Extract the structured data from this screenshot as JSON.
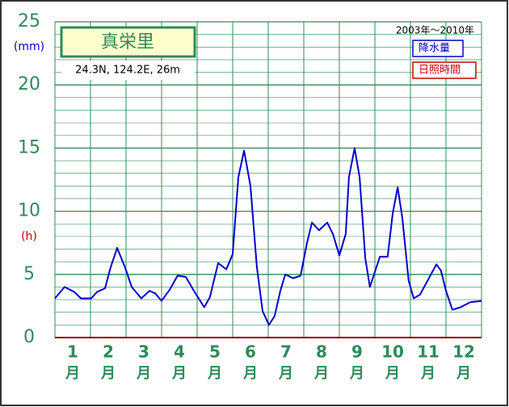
{
  "chart_data": {
    "type": "line",
    "title": "真栄里",
    "location": "24.3N,  124.2E,  26m",
    "period": "2003年～2010年",
    "y_unit": "(mm)",
    "y2_unit": "(h)",
    "month_unit": "月",
    "categories": [
      "1",
      "2",
      "3",
      "4",
      "5",
      "6",
      "7",
      "8",
      "9",
      "10",
      "11",
      "12"
    ],
    "legend": [
      {
        "name": "降水量",
        "color": "#0000cc"
      },
      {
        "name": "日照時間",
        "color": "#cc0000"
      }
    ],
    "xlim": [
      0,
      12
    ],
    "ylim": [
      0,
      25
    ],
    "yticks": [
      0,
      5,
      10,
      15,
      20,
      25
    ],
    "grid": true,
    "series": [
      {
        "color": "#0000cc",
        "x": [
          0,
          0.27,
          0.55,
          0.73,
          1.02,
          1.18,
          1.41,
          1.57,
          1.75,
          1.98,
          2.16,
          2.43,
          2.66,
          2.82,
          3.0,
          3.23,
          3.45,
          3.68,
          3.91,
          4.2,
          4.36,
          4.59,
          4.82,
          5.0,
          5.16,
          5.32,
          5.5,
          5.68,
          5.84,
          6.02,
          6.18,
          6.34,
          6.48,
          6.7,
          6.91,
          7.09,
          7.23,
          7.43,
          7.66,
          7.82,
          8.0,
          8.18,
          8.27,
          8.43,
          8.57,
          8.73,
          8.86,
          9.14,
          9.36,
          9.5,
          9.64,
          9.77,
          9.95,
          10.09,
          10.27,
          10.5,
          10.73,
          10.86,
          11.0,
          11.18,
          11.41,
          11.68,
          12.0
        ],
        "values": [
          3.1,
          4.0,
          3.6,
          3.1,
          3.1,
          3.6,
          3.9,
          5.6,
          7.1,
          5.5,
          4.0,
          3.1,
          3.7,
          3.5,
          2.9,
          3.8,
          4.9,
          4.8,
          3.7,
          2.4,
          3.2,
          5.9,
          5.4,
          6.6,
          12.7,
          14.8,
          12.0,
          5.6,
          2.1,
          1.0,
          1.7,
          3.7,
          5.0,
          4.7,
          4.9,
          7.5,
          9.1,
          8.5,
          9.1,
          8.2,
          6.5,
          8.2,
          12.7,
          15.0,
          12.7,
          6.3,
          4.0,
          6.4,
          6.4,
          9.8,
          11.9,
          9.5,
          4.5,
          3.1,
          3.4,
          4.6,
          5.8,
          5.3,
          3.7,
          2.2,
          2.4,
          2.8,
          2.9
        ]
      }
    ]
  }
}
